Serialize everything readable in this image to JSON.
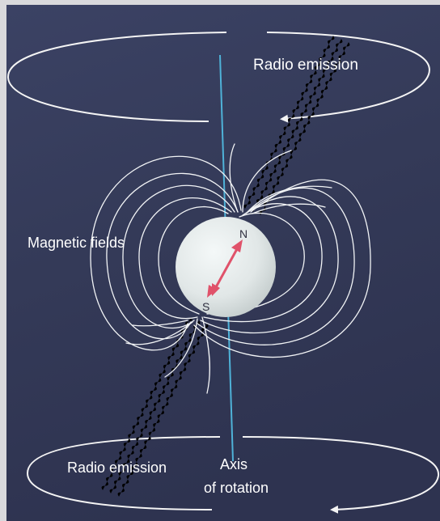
{
  "labels": {
    "radio_emission_top": "Radio emission",
    "radio_emission_bottom": "Radio emission",
    "magnetic_fields": "Magnetic fields",
    "north_pole": "N",
    "south_pole": "S",
    "axis_line1": "Axis",
    "axis_line2": "of rotation"
  },
  "colors": {
    "background": "#373c5c",
    "star": "#e3e9e9",
    "field_lines": "#f2f4f6",
    "radio_beams": "#e8e85a",
    "rotation_axis": "#4fb2d8",
    "magnetic_arrow": "#e0526a",
    "text": "#ffffff"
  }
}
